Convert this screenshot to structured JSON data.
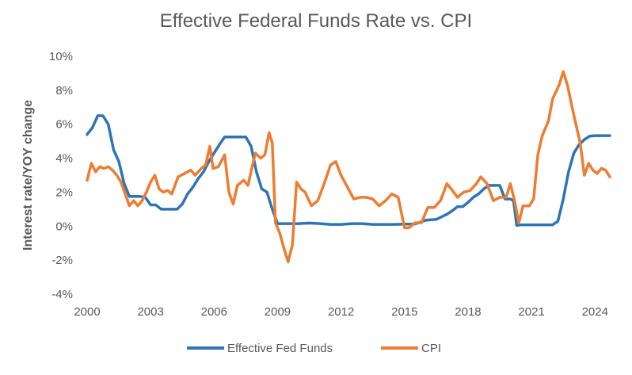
{
  "chart_data": {
    "type": "line",
    "title": "Effective Federal Funds Rate vs. CPI",
    "xlabel": "",
    "ylabel": "Interest rate/YOY change",
    "x_ticks": [
      "2000",
      "2003",
      "2006",
      "2009",
      "2012",
      "2015",
      "2018",
      "2021",
      "2024"
    ],
    "y_ticks": [
      "10%",
      "8%",
      "6%",
      "4%",
      "2%",
      "0%",
      "-2%",
      "-4%"
    ],
    "xlim": [
      2000.0,
      2025.0
    ],
    "ylim": [
      -4,
      10
    ],
    "grid": false,
    "legend_position": "bottom",
    "series": [
      {
        "name": "Effective Fed Funds",
        "color": "#2E75B6",
        "x": [
          2000.0,
          2000.25,
          2000.5,
          2000.75,
          2001.0,
          2001.25,
          2001.5,
          2001.75,
          2002.0,
          2002.25,
          2002.5,
          2002.75,
          2003.0,
          2003.25,
          2003.5,
          2003.75,
          2004.0,
          2004.25,
          2004.5,
          2004.75,
          2005.0,
          2005.25,
          2005.5,
          2005.75,
          2006.0,
          2006.25,
          2006.5,
          2006.75,
          2007.0,
          2007.25,
          2007.5,
          2007.75,
          2008.0,
          2008.25,
          2008.5,
          2008.75,
          2009.0,
          2009.5,
          2010.0,
          2010.5,
          2011.0,
          2011.5,
          2012.0,
          2012.5,
          2013.0,
          2013.5,
          2014.0,
          2014.5,
          2015.0,
          2015.5,
          2016.0,
          2016.5,
          2017.0,
          2017.25,
          2017.5,
          2017.75,
          2018.0,
          2018.25,
          2018.5,
          2018.75,
          2019.0,
          2019.25,
          2019.5,
          2019.75,
          2020.0,
          2020.15,
          2020.3,
          2020.5,
          2021.0,
          2021.5,
          2022.0,
          2022.25,
          2022.5,
          2022.75,
          2023.0,
          2023.25,
          2023.5,
          2023.75,
          2024.0,
          2024.25,
          2024.5,
          2024.7
        ],
        "values": [
          5.4,
          5.8,
          6.5,
          6.5,
          6.0,
          4.5,
          3.8,
          2.5,
          1.75,
          1.75,
          1.75,
          1.7,
          1.25,
          1.25,
          1.0,
          1.0,
          1.0,
          1.0,
          1.3,
          1.9,
          2.3,
          2.8,
          3.2,
          3.8,
          4.3,
          4.8,
          5.25,
          5.25,
          5.25,
          5.25,
          5.25,
          4.7,
          3.2,
          2.2,
          2.0,
          1.0,
          0.15,
          0.15,
          0.15,
          0.18,
          0.15,
          0.1,
          0.1,
          0.15,
          0.15,
          0.1,
          0.1,
          0.1,
          0.12,
          0.13,
          0.35,
          0.4,
          0.7,
          0.9,
          1.15,
          1.15,
          1.4,
          1.7,
          1.9,
          2.2,
          2.4,
          2.4,
          2.4,
          1.6,
          1.6,
          1.5,
          0.05,
          0.08,
          0.08,
          0.08,
          0.08,
          0.3,
          1.6,
          3.2,
          4.3,
          4.8,
          5.1,
          5.3,
          5.33,
          5.33,
          5.33,
          5.33
        ]
      },
      {
        "name": "CPI",
        "color": "#ED7D31",
        "x": [
          2000.0,
          2000.2,
          2000.4,
          2000.6,
          2000.8,
          2001.0,
          2001.2,
          2001.4,
          2001.6,
          2001.8,
          2002.0,
          2002.2,
          2002.4,
          2002.6,
          2002.8,
          2003.0,
          2003.2,
          2003.4,
          2003.6,
          2003.8,
          2004.0,
          2004.3,
          2004.6,
          2004.9,
          2005.1,
          2005.4,
          2005.6,
          2005.8,
          2005.95,
          2006.2,
          2006.5,
          2006.7,
          2006.9,
          2007.1,
          2007.4,
          2007.6,
          2007.8,
          2007.95,
          2008.2,
          2008.4,
          2008.6,
          2008.75,
          2008.9,
          2009.1,
          2009.3,
          2009.5,
          2009.7,
          2009.9,
          2010.1,
          2010.3,
          2010.6,
          2010.9,
          2011.2,
          2011.5,
          2011.75,
          2012.0,
          2012.3,
          2012.6,
          2012.9,
          2013.2,
          2013.5,
          2013.8,
          2014.1,
          2014.4,
          2014.7,
          2015.0,
          2015.2,
          2015.5,
          2015.8,
          2016.1,
          2016.4,
          2016.7,
          2017.0,
          2017.2,
          2017.5,
          2017.8,
          2018.1,
          2018.4,
          2018.6,
          2018.9,
          2019.2,
          2019.5,
          2019.8,
          2020.0,
          2020.2,
          2020.4,
          2020.6,
          2020.9,
          2021.1,
          2021.3,
          2021.5,
          2021.8,
          2022.0,
          2022.3,
          2022.5,
          2022.7,
          2022.9,
          2023.1,
          2023.3,
          2023.5,
          2023.7,
          2023.9,
          2024.1,
          2024.3,
          2024.5,
          2024.7
        ],
        "values": [
          2.7,
          3.7,
          3.2,
          3.5,
          3.4,
          3.5,
          3.3,
          3.0,
          2.6,
          1.9,
          1.2,
          1.5,
          1.2,
          1.5,
          2.0,
          2.6,
          3.0,
          2.2,
          2.0,
          2.1,
          1.9,
          2.9,
          3.1,
          3.3,
          3.0,
          3.4,
          3.6,
          4.7,
          3.4,
          3.5,
          4.2,
          2.0,
          1.3,
          2.4,
          2.7,
          2.4,
          3.5,
          4.3,
          4.0,
          4.2,
          5.5,
          4.9,
          0.2,
          -0.4,
          -1.3,
          -2.1,
          -1.1,
          2.6,
          2.2,
          2.0,
          1.2,
          1.5,
          2.5,
          3.6,
          3.8,
          3.0,
          2.3,
          1.6,
          1.7,
          1.7,
          1.6,
          1.2,
          1.5,
          1.9,
          1.7,
          -0.1,
          -0.1,
          0.2,
          0.2,
          1.1,
          1.1,
          1.5,
          2.5,
          2.2,
          1.7,
          2.0,
          2.1,
          2.5,
          2.9,
          2.5,
          1.5,
          1.7,
          1.7,
          2.5,
          1.5,
          0.2,
          1.2,
          1.2,
          1.6,
          4.2,
          5.3,
          6.2,
          7.5,
          8.3,
          9.1,
          8.3,
          7.1,
          6.0,
          4.9,
          3.0,
          3.7,
          3.3,
          3.1,
          3.4,
          3.3,
          2.9
        ]
      }
    ]
  }
}
